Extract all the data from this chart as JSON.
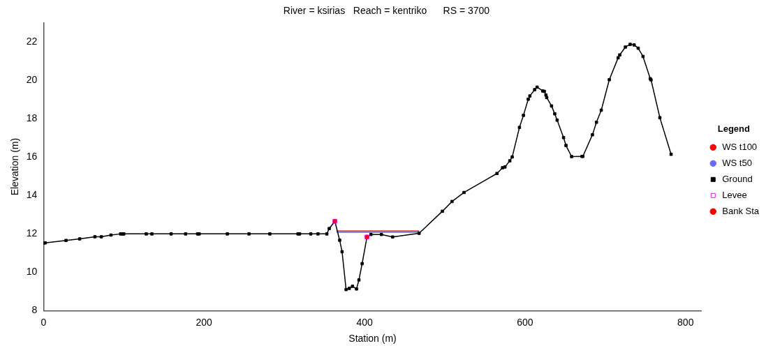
{
  "chart_data": {
    "type": "line",
    "title": "River = ksirias   Reach = kentriko      RS = 3700",
    "xlabel": "Station (m)",
    "ylabel": "Elevation (m)",
    "xlim": [
      0,
      820
    ],
    "xticks": [
      0,
      200,
      400,
      600,
      800
    ],
    "ylim": [
      8,
      23
    ],
    "yticks": [
      8,
      10,
      12,
      14,
      16,
      18,
      20,
      22
    ],
    "grid": false,
    "legend": "right",
    "legend_title": "Legend",
    "series": [
      {
        "name": "WS t100",
        "color": "#ff0000",
        "marker": "none",
        "x": [
          365,
          468
        ],
        "values": [
          12.15,
          12.15
        ]
      },
      {
        "name": "WS t50",
        "color": "#6a6aff",
        "marker": "none",
        "x": [
          365,
          468
        ],
        "values": [
          12.08,
          12.08
        ]
      },
      {
        "name": "Ground",
        "color": "#000000",
        "marker": "square",
        "x": [
          0,
          2,
          28,
          45,
          64,
          72,
          84,
          96,
          98,
          100,
          128,
          135,
          159,
          177,
          192,
          194,
          229,
          256,
          282,
          317,
          319,
          333,
          342,
          353,
          356,
          363,
          369,
          372,
          377,
          381,
          385,
          390,
          393,
          397,
          403,
          408,
          421,
          435,
          468,
          497,
          509,
          524,
          565,
          572,
          575,
          581,
          584,
          593,
          598,
          604,
          606,
          612,
          615,
          622,
          624,
          626,
          627,
          633,
          637,
          640,
          648,
          651,
          658,
          671,
          672,
          684,
          689,
          695,
          705,
          716,
          718,
          725,
          731,
          736,
          741,
          747,
          756,
          757,
          768,
          782
        ],
        "values": [
          11.53,
          11.53,
          11.66,
          11.74,
          11.85,
          11.85,
          11.94,
          12,
          12,
          12,
          12,
          12,
          12,
          12,
          12,
          12,
          12,
          12,
          12,
          12,
          12,
          12,
          12,
          12,
          12.28,
          12.66,
          11.67,
          11.07,
          9.1,
          9.16,
          9.27,
          9.13,
          9.6,
          10.45,
          11.84,
          11.97,
          11.97,
          11.84,
          12.03,
          13.18,
          13.69,
          14.16,
          15.15,
          15.45,
          15.49,
          15.81,
          16.01,
          17.55,
          18.18,
          19.02,
          19.19,
          19.52,
          19.65,
          19.45,
          19.43,
          19.24,
          19.11,
          18.67,
          18.26,
          17.93,
          17.02,
          16.61,
          16.03,
          16.04,
          16.04,
          17.17,
          17.82,
          18.45,
          20.04,
          21.18,
          21.33,
          21.74,
          21.88,
          21.85,
          21.68,
          21.25,
          20.09,
          20.03,
          18.06,
          16.15
        ]
      },
      {
        "name": "Levee",
        "type": "scatter",
        "color": "#ff00ff",
        "marker": "square",
        "x": [
          363,
          403
        ],
        "values": [
          12.66,
          11.84
        ]
      },
      {
        "name": "Bank Sta",
        "type": "scatter",
        "color": "#ff0000",
        "marker": "circle",
        "x": [
          363,
          403
        ],
        "values": [
          12.66,
          11.84
        ]
      }
    ]
  }
}
